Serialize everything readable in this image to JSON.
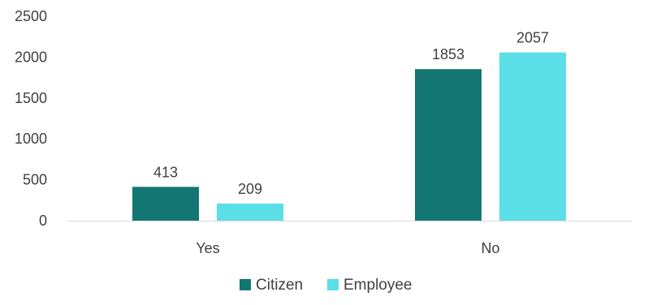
{
  "chart_data": {
    "type": "bar",
    "title": "",
    "xlabel": "",
    "ylabel": "",
    "categories": [
      "Yes",
      "No"
    ],
    "series": [
      {
        "name": "Citizen",
        "values": [
          413,
          1853
        ],
        "color": "#147672"
      },
      {
        "name": "Employee",
        "values": [
          209,
          2057
        ],
        "color": "#5ADFE8"
      }
    ],
    "ylim": [
      0,
      2500
    ],
    "yticks": [
      "0",
      "500",
      "1000",
      "1500",
      "2000",
      "2500"
    ],
    "data_labels": true,
    "grid": false,
    "legend_position": "bottom"
  }
}
